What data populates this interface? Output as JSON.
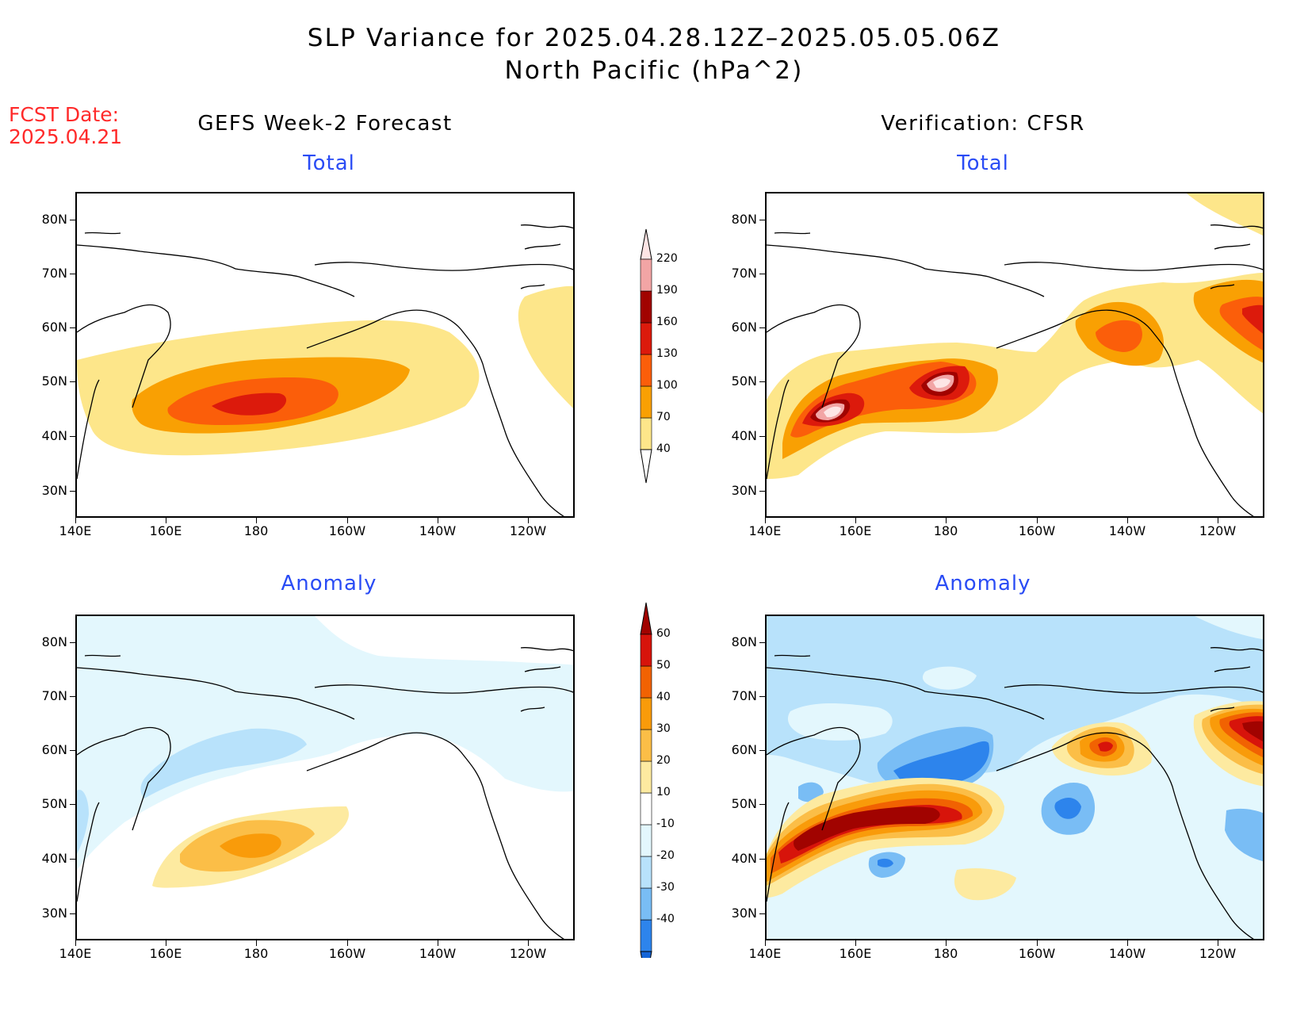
{
  "header": {
    "title_line1": "SLP Variance for 2025.04.28.12Z–2025.05.05.06Z",
    "title_line2": "North Pacific (hPa^2)",
    "fcst_label": "FCST Date:",
    "fcst_date": "2025.04.21"
  },
  "columns": {
    "left": "GEFS Week-2 Forecast",
    "right": "Verification: CFSR"
  },
  "panels": {
    "total_label": "Total",
    "anomaly_label": "Anomaly"
  },
  "axes": {
    "lat_ticks": [
      "80N",
      "70N",
      "60N",
      "50N",
      "40N",
      "30N"
    ],
    "lon_ticks": [
      "140E",
      "160E",
      "180",
      "160W",
      "140W",
      "120W"
    ]
  },
  "colorbar_total": {
    "levels": [
      "40",
      "70",
      "100",
      "130",
      "160",
      "190",
      "220"
    ],
    "colors": [
      "#fde68a",
      "#f9a003",
      "#fb5e0a",
      "#dc1a0c",
      "#a10300",
      "#f2a5a5",
      "#fde5e5"
    ]
  },
  "colorbar_anomaly": {
    "levels": [
      "-40",
      "-30",
      "-20",
      "-10",
      "10",
      "20",
      "30",
      "40",
      "50",
      "60"
    ],
    "colors": [
      "#1565d8",
      "#2d84ec",
      "#79bdf5",
      "#b8e2fb",
      "#e3f7fd",
      "#ffffff",
      "#fdeaa0",
      "#fbbe47",
      "#f99b0a",
      "#f16202",
      "#d7140b",
      "#a10300"
    ]
  }
}
